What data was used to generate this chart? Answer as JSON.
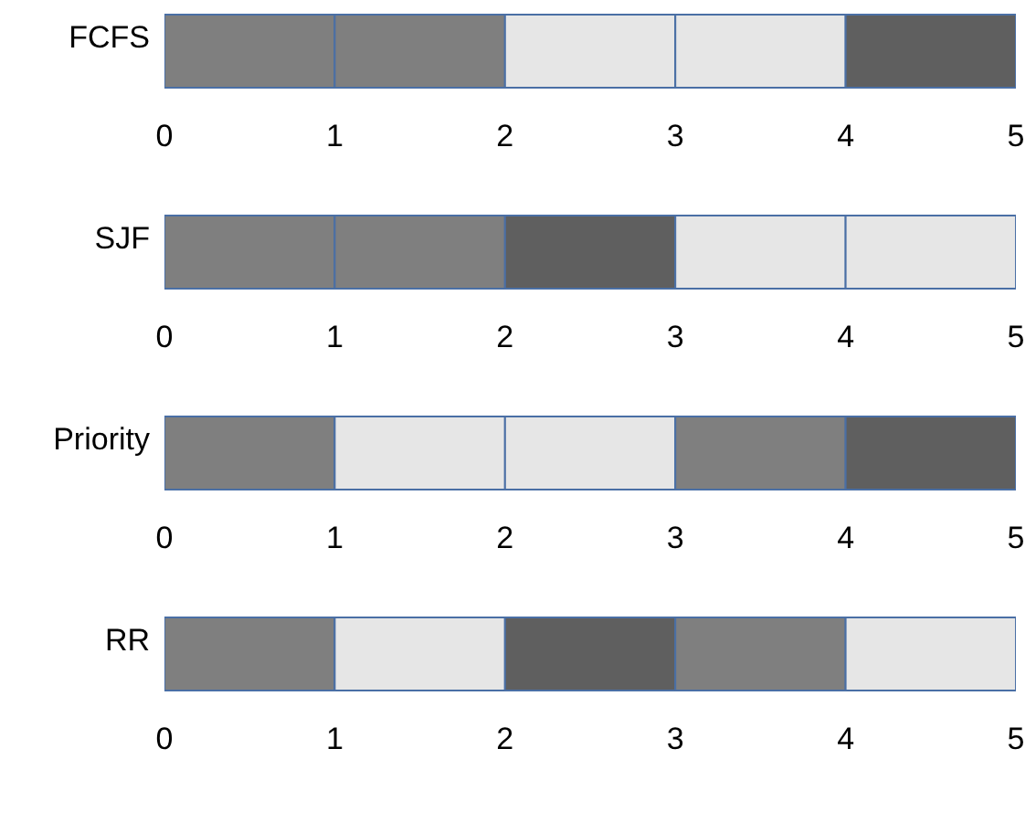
{
  "chart_data": [
    {
      "type": "bar",
      "orientation": "horizontal",
      "stacked": true,
      "categories": [
        "FCFS"
      ],
      "series": [
        {
          "color": "#7f7f7f",
          "values": [
            1
          ]
        },
        {
          "color": "#7f7f7f",
          "values": [
            1
          ]
        },
        {
          "color": "#e6e6e6",
          "values": [
            1
          ]
        },
        {
          "color": "#e6e6e6",
          "values": [
            1
          ]
        },
        {
          "color": "#5f5f5f",
          "values": [
            1
          ]
        }
      ],
      "xlim": [
        0,
        5
      ],
      "xticks": [
        0,
        1,
        2,
        3,
        4,
        5
      ]
    },
    {
      "type": "bar",
      "orientation": "horizontal",
      "stacked": true,
      "categories": [
        "SJF"
      ],
      "series": [
        {
          "color": "#7f7f7f",
          "values": [
            1
          ]
        },
        {
          "color": "#7f7f7f",
          "values": [
            1
          ]
        },
        {
          "color": "#5f5f5f",
          "values": [
            1
          ]
        },
        {
          "color": "#e6e6e6",
          "values": [
            1
          ]
        },
        {
          "color": "#e6e6e6",
          "values": [
            1
          ]
        }
      ],
      "xlim": [
        0,
        5
      ],
      "xticks": [
        0,
        1,
        2,
        3,
        4,
        5
      ]
    },
    {
      "type": "bar",
      "orientation": "horizontal",
      "stacked": true,
      "categories": [
        "Priority"
      ],
      "series": [
        {
          "color": "#7f7f7f",
          "values": [
            1
          ]
        },
        {
          "color": "#e6e6e6",
          "values": [
            1
          ]
        },
        {
          "color": "#e6e6e6",
          "values": [
            1
          ]
        },
        {
          "color": "#7f7f7f",
          "values": [
            1
          ]
        },
        {
          "color": "#5f5f5f",
          "values": [
            1
          ]
        }
      ],
      "xlim": [
        0,
        5
      ],
      "xticks": [
        0,
        1,
        2,
        3,
        4,
        5
      ]
    },
    {
      "type": "bar",
      "orientation": "horizontal",
      "stacked": true,
      "categories": [
        "RR"
      ],
      "series": [
        {
          "color": "#7f7f7f",
          "values": [
            1
          ]
        },
        {
          "color": "#e6e6e6",
          "values": [
            1
          ]
        },
        {
          "color": "#5f5f5f",
          "values": [
            1
          ]
        },
        {
          "color": "#7f7f7f",
          "values": [
            1
          ]
        },
        {
          "color": "#e6e6e6",
          "values": [
            1
          ]
        }
      ],
      "xlim": [
        0,
        5
      ],
      "xticks": [
        0,
        1,
        2,
        3,
        4,
        5
      ]
    }
  ]
}
